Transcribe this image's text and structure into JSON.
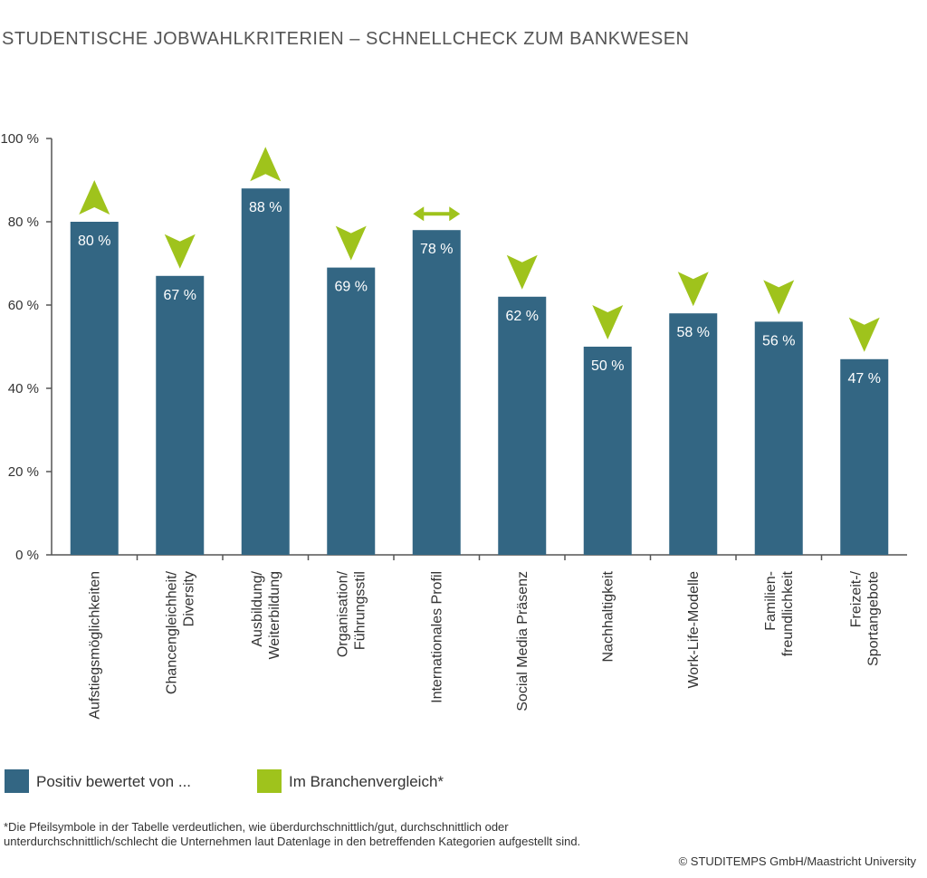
{
  "chart_data": {
    "type": "bar",
    "title": "STUDENTISCHE JOBWAHLKRITERIEN – SCHNELLCHECK ZUM BANKWESEN",
    "categories": [
      "Aufstiegsmöglichkeiten",
      "Chancengleichheit/\nDiversity",
      "Ausbildung/\nWeiterbildung",
      "Organisation/\nFührungsstil",
      "Internationales Profil",
      "Social Media Präsenz",
      "Nachhaltigkeit",
      "Work-Life-Modelle",
      "Familien-\nfreundlichkeit",
      "Freizeit-/\nSportangebote"
    ],
    "series": [
      {
        "name": "Positiv bewertet von ...",
        "color": "#336683",
        "values": [
          80,
          67,
          88,
          69,
          78,
          62,
          50,
          58,
          56,
          47
        ],
        "value_labels": [
          "80 %",
          "67 %",
          "88 %",
          "69 %",
          "78 %",
          "62 %",
          "50 %",
          "58 %",
          "56 %",
          "47 %"
        ]
      }
    ],
    "comparison": {
      "name": "Im Branchenvergleich*",
      "color": "#9fc31c",
      "values": [
        "up",
        "down",
        "up",
        "down",
        "both",
        "down",
        "down",
        "down",
        "down",
        "down"
      ]
    },
    "ylim": [
      0,
      100
    ],
    "yticks": [
      {
        "value": 0,
        "label": "0 %"
      },
      {
        "value": 20,
        "label": "20 %"
      },
      {
        "value": 40,
        "label": "40 %"
      },
      {
        "value": 60,
        "label": "60 %"
      },
      {
        "value": 80,
        "label": "80 %"
      },
      {
        "value": 100,
        "label": "100 %"
      }
    ],
    "grid": false,
    "footnote": "*Die Pfeilsymbole in der Tabelle verdeutlichen, wie überdurchschnittlich/gut, durchschnittlich oder unterdurchschnittlich/schlecht die Unternehmen laut Datenlage in den betreffenden Kategorien aufgestellt sind.",
    "source": "© STUDITEMPS GmbH/Maastricht University"
  }
}
